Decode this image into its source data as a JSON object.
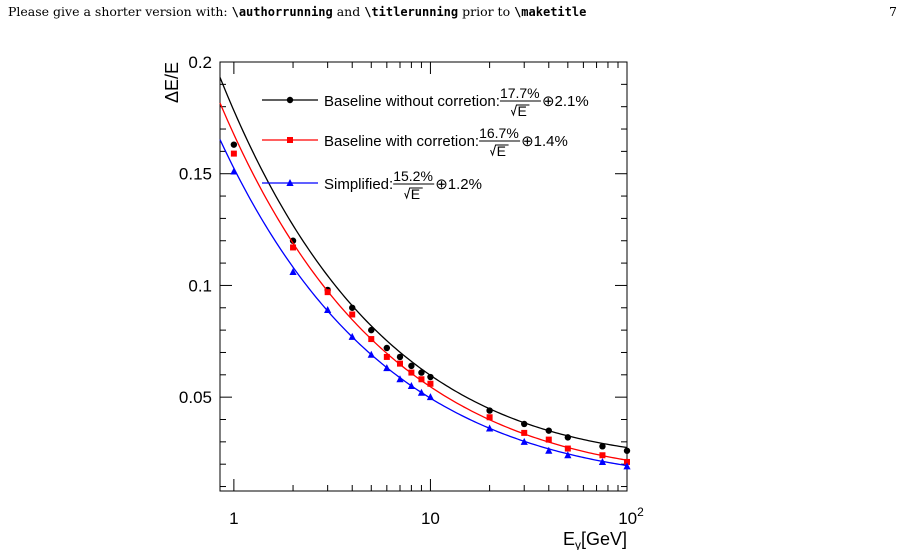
{
  "page": {
    "header_parts": [
      "Please give a shorter version with: ",
      "\\authorrunning",
      " and ",
      "\\titlerunning",
      " prior to ",
      "\\maketitle"
    ],
    "page_number": "7"
  },
  "chart_data": {
    "type": "scatter",
    "x_scale": "log",
    "xlim": [
      0.85,
      100
    ],
    "ylim": [
      0.008,
      0.2
    ],
    "xlabel": "E_γ[GeV]",
    "ylabel": "ΔE/E",
    "x_ticks": [
      {
        "v": 1,
        "label": "1"
      },
      {
        "v": 10,
        "label": "10"
      },
      {
        "v": 100,
        "label": "10",
        "sup": "2"
      }
    ],
    "y_ticks": [
      {
        "v": 0.05,
        "label": "0.05"
      },
      {
        "v": 0.1,
        "label": "0.1"
      },
      {
        "v": 0.15,
        "label": "0.15"
      },
      {
        "v": 0.2,
        "label": "0.2"
      }
    ],
    "grid": false,
    "legend_position": "top",
    "series": [
      {
        "color": "#000000",
        "marker": "circle",
        "legend": {
          "pre": "Baseline without corretion:",
          "num": "17.7%",
          "den": "E",
          "post": "⊕2.1%"
        },
        "fit": {
          "a": 0.177,
          "b": 0.021
        },
        "x": [
          1,
          2,
          3,
          4,
          5,
          6,
          7,
          8,
          9,
          10,
          20,
          30,
          40,
          50,
          75,
          100
        ],
        "y": [
          0.163,
          0.12,
          0.098,
          0.09,
          0.08,
          0.072,
          0.068,
          0.064,
          0.061,
          0.059,
          0.044,
          0.038,
          0.035,
          0.032,
          0.028,
          0.026
        ]
      },
      {
        "color": "#ff0000",
        "marker": "square",
        "legend": {
          "pre": "Baseline with corretion:",
          "num": "16.7%",
          "den": "E",
          "post": "⊕1.4%"
        },
        "fit": {
          "a": 0.167,
          "b": 0.014
        },
        "x": [
          1,
          2,
          3,
          4,
          5,
          6,
          7,
          8,
          9,
          10,
          20,
          30,
          40,
          50,
          75,
          100
        ],
        "y": [
          0.159,
          0.117,
          0.097,
          0.087,
          0.076,
          0.068,
          0.065,
          0.061,
          0.058,
          0.056,
          0.041,
          0.034,
          0.031,
          0.027,
          0.024,
          0.021
        ]
      },
      {
        "color": "#0000ff",
        "marker": "triangle",
        "legend": {
          "pre": "Simplified:",
          "num": "15.2%",
          "den": "E",
          "post": "⊕1.2%"
        },
        "fit": {
          "a": 0.152,
          "b": 0.012
        },
        "x": [
          1,
          2,
          3,
          4,
          5,
          6,
          7,
          8,
          9,
          10,
          20,
          30,
          40,
          50,
          75,
          100
        ],
        "y": [
          0.151,
          0.106,
          0.089,
          0.077,
          0.069,
          0.063,
          0.058,
          0.055,
          0.052,
          0.05,
          0.036,
          0.03,
          0.026,
          0.024,
          0.021,
          0.019
        ]
      }
    ]
  }
}
